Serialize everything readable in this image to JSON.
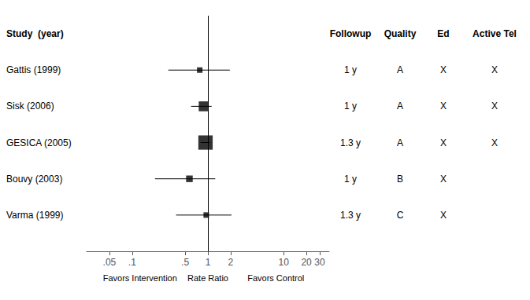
{
  "chart_data": {
    "type": "forest",
    "header": "Study  (year)",
    "categories": [
      "Gattis (1999)",
      "Sisk (2006)",
      "GESICA (2005)",
      "Bouvy (2003)",
      "Varma (1999)"
    ],
    "values": [
      0.78,
      0.88,
      0.93,
      0.57,
      0.95
    ],
    "ci_low": [
      0.3,
      0.6,
      0.8,
      0.2,
      0.38
    ],
    "ci_high": [
      1.95,
      1.12,
      1.06,
      1.25,
      2.05
    ],
    "box_sizes": [
      5,
      9,
      13,
      6,
      5
    ],
    "columns": [
      {
        "name": "Followup",
        "values": [
          "1 y",
          "1 y",
          "1.3 y",
          "1 y",
          "1.3 y"
        ]
      },
      {
        "name": "Quality",
        "values": [
          "A",
          "A",
          "A",
          "B",
          "C"
        ]
      },
      {
        "name": "Ed",
        "values": [
          "X",
          "X",
          "X",
          "X",
          "X"
        ]
      },
      {
        "name": "Active Tel",
        "values": [
          "X",
          "X",
          "X",
          null,
          null
        ]
      }
    ],
    "annotations": [
      "Favors Intervention",
      "Rate Ratio",
      "Favors Control"
    ],
    "reference_x": 1,
    "xlim": [
      0.025,
      40
    ],
    "xticks": [
      {
        "value": 0.05,
        "label": ".05"
      },
      {
        "value": 0.1,
        "label": ".1"
      },
      {
        "value": 0.5,
        "label": ".5"
      },
      1,
      2,
      10,
      20,
      30
    ],
    "log": "x",
    "grid": false,
    "tick_labels": "x",
    "color": "#000000"
  }
}
